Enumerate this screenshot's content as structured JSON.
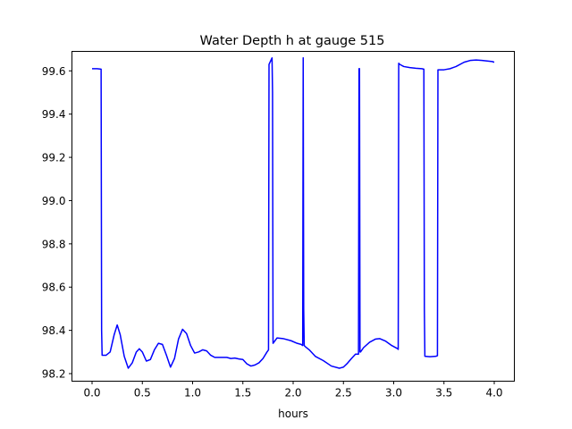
{
  "chart_data": {
    "type": "line",
    "title": "Water Depth h at gauge 515",
    "xlabel": "hours",
    "ylabel": "",
    "xlim": [
      -0.2,
      4.2
    ],
    "ylim": [
      98.165,
      99.69
    ],
    "xticks": [
      0.0,
      0.5,
      1.0,
      1.5,
      2.0,
      2.5,
      3.0,
      3.5,
      4.0
    ],
    "xtick_labels": [
      "0.0",
      "0.5",
      "1.0",
      "1.5",
      "2.0",
      "2.5",
      "3.0",
      "3.5",
      "4.0"
    ],
    "yticks": [
      98.2,
      98.4,
      98.6,
      98.8,
      99.0,
      99.2,
      99.4,
      99.6
    ],
    "ytick_labels": [
      "98.2",
      "98.4",
      "98.6",
      "98.8",
      "99.0",
      "99.2",
      "99.4",
      "99.6"
    ],
    "grid": false,
    "series": [
      {
        "color": "#0000ff",
        "x": [
          0.0,
          0.05,
          0.09,
          0.095,
          0.1,
          0.14,
          0.18,
          0.22,
          0.25,
          0.28,
          0.32,
          0.36,
          0.4,
          0.44,
          0.47,
          0.5,
          0.54,
          0.58,
          0.62,
          0.66,
          0.7,
          0.74,
          0.78,
          0.82,
          0.86,
          0.9,
          0.94,
          0.98,
          1.02,
          1.06,
          1.1,
          1.14,
          1.18,
          1.22,
          1.26,
          1.3,
          1.34,
          1.38,
          1.42,
          1.46,
          1.5,
          1.54,
          1.58,
          1.62,
          1.66,
          1.7,
          1.74,
          1.755,
          1.76,
          1.77,
          1.78,
          1.79,
          1.795,
          1.8,
          1.84,
          1.9,
          1.98,
          2.04,
          2.08,
          2.095,
          2.1,
          2.105,
          2.11,
          2.12,
          2.16,
          2.22,
          2.3,
          2.38,
          2.46,
          2.5,
          2.54,
          2.58,
          2.62,
          2.65,
          2.655,
          2.66,
          2.665,
          2.67,
          2.7,
          2.76,
          2.82,
          2.86,
          2.92,
          2.98,
          3.04,
          3.045,
          3.05,
          3.06,
          3.1,
          3.16,
          3.22,
          3.28,
          3.3,
          3.305,
          3.31,
          3.36,
          3.42,
          3.43,
          3.435,
          3.44,
          3.5,
          3.56,
          3.62,
          3.7,
          3.76,
          3.82,
          3.88,
          3.94,
          3.98,
          4.0
        ],
        "y": [
          99.61,
          99.61,
          99.608,
          98.4,
          98.285,
          98.285,
          98.3,
          98.38,
          98.425,
          98.38,
          98.28,
          98.225,
          98.25,
          98.3,
          98.315,
          98.3,
          98.258,
          98.265,
          98.31,
          98.34,
          98.335,
          98.285,
          98.23,
          98.27,
          98.36,
          98.405,
          98.385,
          98.33,
          98.295,
          98.3,
          98.31,
          98.305,
          98.285,
          98.275,
          98.275,
          98.275,
          98.275,
          98.27,
          98.272,
          98.268,
          98.265,
          98.245,
          98.235,
          98.24,
          98.25,
          98.27,
          98.3,
          98.31,
          99.63,
          99.64,
          99.65,
          99.66,
          99.5,
          98.34,
          98.365,
          98.362,
          98.352,
          98.34,
          98.335,
          98.33,
          99.66,
          98.5,
          98.33,
          98.325,
          98.31,
          98.28,
          98.26,
          98.235,
          98.225,
          98.23,
          98.248,
          98.27,
          98.29,
          98.29,
          99.61,
          99.61,
          98.3,
          98.3,
          98.32,
          98.345,
          98.36,
          98.362,
          98.35,
          98.33,
          98.315,
          98.312,
          99.635,
          99.63,
          99.62,
          99.615,
          99.612,
          99.61,
          99.608,
          98.5,
          98.28,
          98.278,
          98.28,
          98.282,
          98.283,
          99.605,
          99.605,
          99.61,
          99.62,
          99.64,
          99.648,
          99.65,
          99.648,
          99.645,
          99.643,
          99.64
        ]
      }
    ]
  }
}
